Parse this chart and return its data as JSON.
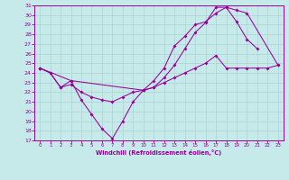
{
  "xlabel": "Windchill (Refroidissement éolien,°C)",
  "bg_color": "#c6eaea",
  "line_color": "#990099",
  "grid_color": "#aad4d4",
  "xlim": [
    -0.5,
    23.5
  ],
  "ylim": [
    17,
    31
  ],
  "xticks": [
    0,
    1,
    2,
    3,
    4,
    5,
    6,
    7,
    8,
    9,
    10,
    11,
    12,
    13,
    14,
    15,
    16,
    17,
    18,
    19,
    20,
    21,
    22,
    23
  ],
  "yticks": [
    17,
    18,
    19,
    20,
    21,
    22,
    23,
    24,
    25,
    26,
    27,
    28,
    29,
    30,
    31
  ],
  "line1_x": [
    0,
    1,
    2,
    3,
    4,
    5,
    6,
    7,
    8,
    9,
    10,
    11,
    12,
    13,
    14,
    15,
    16,
    17,
    18,
    19,
    20,
    21
  ],
  "line1_y": [
    24.5,
    24.0,
    22.5,
    23.2,
    21.2,
    19.7,
    18.2,
    17.2,
    19.0,
    21.0,
    22.2,
    23.2,
    24.5,
    26.8,
    27.8,
    29.0,
    29.3,
    30.2,
    30.8,
    29.3,
    27.5,
    26.5
  ],
  "line2_x": [
    0,
    3,
    10,
    11,
    12,
    13,
    14,
    15,
    16,
    17,
    18,
    19,
    20,
    23
  ],
  "line2_y": [
    24.5,
    23.2,
    22.2,
    22.5,
    23.5,
    24.8,
    26.5,
    28.2,
    29.2,
    30.8,
    30.8,
    30.5,
    30.2,
    24.8
  ],
  "line3_x": [
    0,
    1,
    2,
    3,
    4,
    5,
    6,
    7,
    8,
    9,
    10,
    11,
    12,
    13,
    14,
    15,
    16,
    17,
    18,
    19,
    20,
    21,
    22,
    23
  ],
  "line3_y": [
    24.5,
    24.0,
    22.5,
    22.8,
    22.0,
    21.5,
    21.2,
    21.0,
    21.5,
    22.0,
    22.2,
    22.5,
    23.0,
    23.5,
    24.0,
    24.5,
    25.0,
    25.8,
    24.5,
    24.5,
    24.5,
    24.5,
    24.5,
    24.8
  ]
}
